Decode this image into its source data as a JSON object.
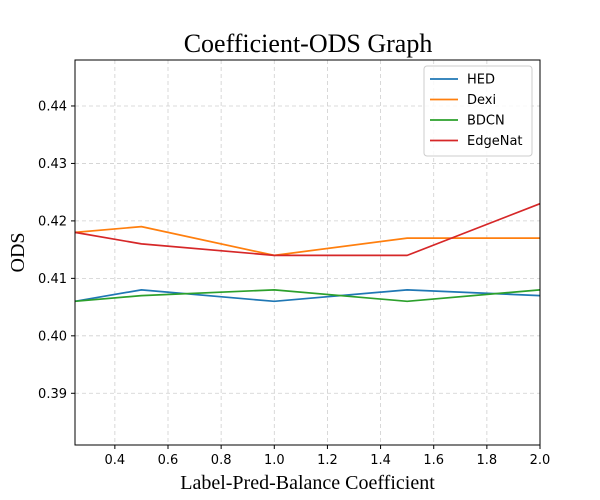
{
  "chart_data": {
    "type": "line",
    "title": "Coefficient-ODS Graph",
    "xlabel": "Label-Pred-Balance Coefficient",
    "ylabel": "ODS",
    "xlim": [
      0.25,
      2.0
    ],
    "ylim": [
      0.381,
      0.448
    ],
    "xticks": [
      0.4,
      0.6,
      0.8,
      1.0,
      1.2,
      1.4,
      1.6,
      1.8,
      2.0
    ],
    "xtick_labels": [
      "0.4",
      "0.6",
      "0.8",
      "1.0",
      "1.2",
      "1.4",
      "1.6",
      "1.8",
      "2.0"
    ],
    "yticks": [
      0.39,
      0.4,
      0.41,
      0.42,
      0.43,
      0.44
    ],
    "ytick_labels": [
      "0.39",
      "0.40",
      "0.41",
      "0.42",
      "0.43",
      "0.44"
    ],
    "grid": true,
    "legend_position": "top-right",
    "x": [
      0.25,
      0.5,
      1.0,
      1.5,
      2.0
    ],
    "series": [
      {
        "name": "HED",
        "color": "#1f77b4",
        "values": [
          0.406,
          0.408,
          0.406,
          0.408,
          0.407
        ]
      },
      {
        "name": "Dexi",
        "color": "#ff7f0e",
        "values": [
          0.418,
          0.419,
          0.414,
          0.417,
          0.417
        ]
      },
      {
        "name": "BDCN",
        "color": "#2ca02c",
        "values": [
          0.406,
          0.407,
          0.408,
          0.406,
          0.408
        ]
      },
      {
        "name": "EdgeNat",
        "color": "#d62728",
        "values": [
          0.418,
          0.416,
          0.414,
          0.414,
          0.423
        ]
      }
    ]
  }
}
